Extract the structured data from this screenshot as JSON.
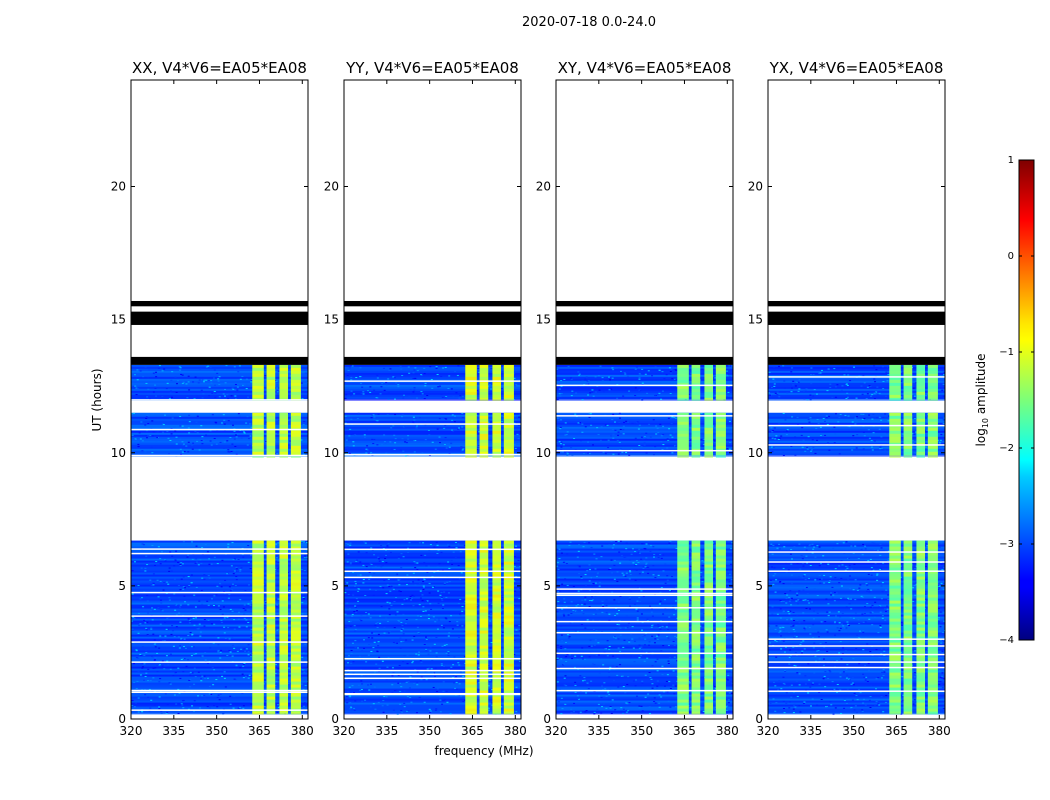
{
  "chart_data": {
    "type": "heatmap",
    "title": "2020-07-18 0.0-24.0",
    "xlabel": "frequency (MHz)",
    "ylabel": "UT (hours)",
    "xlim": [
      320,
      382
    ],
    "ylim": [
      0,
      24
    ],
    "xticks": [
      "320",
      "335",
      "350",
      "365",
      "380"
    ],
    "xtick_values": [
      320,
      335,
      350,
      365,
      380
    ],
    "yticks": [
      "0",
      "5",
      "10",
      "15",
      "20"
    ],
    "ytick_values": [
      0,
      5,
      10,
      15,
      20
    ],
    "panels": [
      {
        "title": "XX, V4*V6=EA05*EA08",
        "band_level": -1.2
      },
      {
        "title": "YY, V4*V6=EA05*EA08",
        "band_level": -1.1
      },
      {
        "title": "XY, V4*V6=EA05*EA08",
        "band_level": -1.5
      },
      {
        "title": "YX, V4*V6=EA05*EA08",
        "band_level": -1.5
      }
    ],
    "background_level": -3.0,
    "rfi_band_mhz": [
      [
        362.5,
        366.5
      ],
      [
        367.5,
        370.5
      ],
      [
        372,
        375
      ],
      [
        376,
        379.5
      ]
    ],
    "flagged_black_hours": [
      [
        15.5,
        15.7
      ],
      [
        14.8,
        15.3
      ],
      [
        13.3,
        13.6
      ]
    ],
    "data_rows_hours": [
      [
        12.0,
        13.3
      ],
      [
        9.9,
        11.5
      ],
      [
        0.2,
        6.7
      ]
    ],
    "colorbar": {
      "label": "log10 amplitude",
      "label_prefix": "log",
      "label_sub": "10",
      "label_suffix": " amplitude",
      "range": [
        -4,
        1
      ],
      "ticks": [
        "1",
        "0",
        "−1",
        "−2",
        "−3",
        "−4"
      ],
      "tick_values": [
        1,
        0,
        -1,
        -2,
        -3,
        -4
      ],
      "colormap": "jet"
    }
  }
}
